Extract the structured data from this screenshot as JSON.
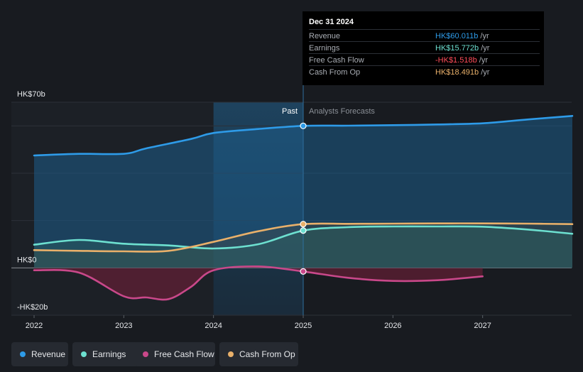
{
  "tooltip": {
    "date": "Dec 31 2024",
    "rows": [
      {
        "label": "Revenue",
        "value": "HK$60.011b",
        "unit": "/yr",
        "color": "#2e9be8"
      },
      {
        "label": "Earnings",
        "value": "HK$15.772b",
        "unit": "/yr",
        "color": "#6de0d0"
      },
      {
        "label": "Free Cash Flow",
        "value": "-HK$1.518b",
        "unit": "/yr",
        "color": "#ff4d5a"
      },
      {
        "label": "Cash From Op",
        "value": "HK$18.491b",
        "unit": "/yr",
        "color": "#e9b06a"
      }
    ]
  },
  "legend": [
    {
      "label": "Revenue",
      "color": "#2e9be8"
    },
    {
      "label": "Earnings",
      "color": "#6de0d0"
    },
    {
      "label": "Free Cash Flow",
      "color": "#c9488a"
    },
    {
      "label": "Cash From Op",
      "color": "#e9b06a"
    }
  ],
  "chart_data": {
    "type": "line",
    "title": "",
    "xlabel": "",
    "ylabel": "",
    "xlim": [
      2021.9,
      2027.98
    ],
    "ylim": [
      -20,
      70
    ],
    "y_ticks": [
      {
        "value": 70,
        "label": "HK$70b"
      },
      {
        "value": 0,
        "label": "HK$0"
      },
      {
        "value": -20,
        "label": "-HK$20b"
      }
    ],
    "x_ticks": [
      {
        "value": 2022,
        "label": "2022"
      },
      {
        "value": 2023,
        "label": "2023"
      },
      {
        "value": 2024,
        "label": "2024"
      },
      {
        "value": 2025,
        "label": "2025"
      },
      {
        "value": 2026,
        "label": "2026"
      },
      {
        "value": 2027,
        "label": "2027"
      }
    ],
    "grid": true,
    "past_label": "Past",
    "forecast_label": "Analysts Forecasts",
    "divider_x": 2025,
    "highlight_start": 2024,
    "series": [
      {
        "name": "Revenue",
        "color": "#2e9be8",
        "points": [
          [
            2022,
            47.5
          ],
          [
            2022.5,
            48.2
          ],
          [
            2023,
            48.2
          ],
          [
            2023.25,
            50.5
          ],
          [
            2023.75,
            54.5
          ],
          [
            2024,
            57
          ],
          [
            2024.5,
            58.7
          ],
          [
            2025,
            60.011
          ],
          [
            2025.5,
            60.1
          ],
          [
            2026,
            60.3
          ],
          [
            2026.5,
            60.6
          ],
          [
            2027,
            61.1
          ],
          [
            2027.5,
            62.7
          ],
          [
            2028,
            64.2
          ]
        ]
      },
      {
        "name": "Earnings",
        "color": "#6de0d0",
        "points": [
          [
            2022,
            9.8
          ],
          [
            2022.5,
            11.8
          ],
          [
            2023,
            10.2
          ],
          [
            2023.5,
            9.5
          ],
          [
            2024,
            8.2
          ],
          [
            2024.5,
            10
          ],
          [
            2025,
            15.772
          ],
          [
            2025.5,
            17.2
          ],
          [
            2026,
            17.5
          ],
          [
            2026.5,
            17.5
          ],
          [
            2027,
            17.4
          ],
          [
            2027.5,
            16.2
          ],
          [
            2028,
            14.4
          ]
        ]
      },
      {
        "name": "Free Cash Flow",
        "color": "#c9488a",
        "points": [
          [
            2022,
            -1
          ],
          [
            2022.5,
            -2
          ],
          [
            2023,
            -12
          ],
          [
            2023.25,
            -12.5
          ],
          [
            2023.5,
            -13.2
          ],
          [
            2023.75,
            -8
          ],
          [
            2024,
            -1
          ],
          [
            2024.5,
            0.6
          ],
          [
            2025,
            -1.518
          ],
          [
            2025.5,
            -4.2
          ],
          [
            2026,
            -5.5
          ],
          [
            2026.5,
            -5.2
          ],
          [
            2027,
            -3.6
          ]
        ]
      },
      {
        "name": "Cash From Op",
        "color": "#e9b06a",
        "points": [
          [
            2022,
            7.5
          ],
          [
            2022.5,
            7.2
          ],
          [
            2023,
            7.0
          ],
          [
            2023.5,
            7.2
          ],
          [
            2024,
            11
          ],
          [
            2024.5,
            15.5
          ],
          [
            2025,
            18.491
          ],
          [
            2025.5,
            18.6
          ],
          [
            2026,
            18.7
          ],
          [
            2026.5,
            18.8
          ],
          [
            2027,
            18.8
          ],
          [
            2027.5,
            18.7
          ],
          [
            2028,
            18.5
          ]
        ]
      }
    ],
    "markers": [
      {
        "series": "Revenue",
        "x": 2025,
        "y": 60.011
      },
      {
        "series": "Earnings",
        "x": 2025,
        "y": 15.772
      },
      {
        "series": "Free Cash Flow",
        "x": 2025,
        "y": -1.518
      },
      {
        "series": "Cash From Op",
        "x": 2025,
        "y": 18.491
      }
    ]
  }
}
